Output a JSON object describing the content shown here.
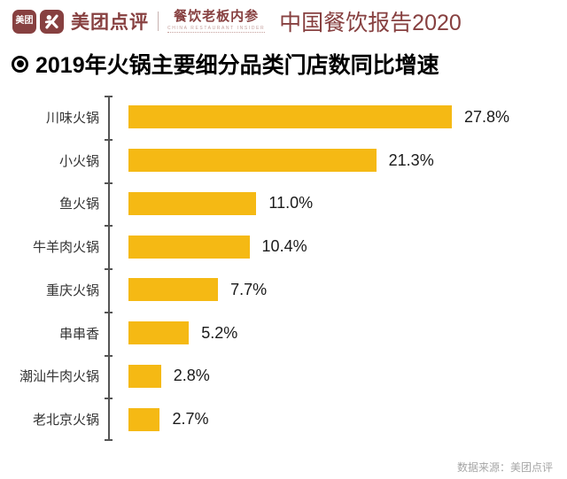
{
  "header": {
    "meituan_badge_label": "美团",
    "brand_name": "美团点评",
    "partner_name": "餐饮老板内参",
    "partner_caption": "CHINA RESTAURANT INSIDER",
    "report_title": "中国餐饮报告2020"
  },
  "title": "2019年火锅主要细分品类门店数同比增速",
  "source_note": "数据来源：美团点评",
  "colors": {
    "brand_maroon": "#874040",
    "bar_yellow": "#F5B914",
    "axis_gray": "#555555",
    "value_text": "#1a1a1a",
    "category_text": "#333333",
    "source_text": "#a6a6a6"
  },
  "chart_data": {
    "type": "bar",
    "orientation": "horizontal",
    "title": "2019年火锅主要细分品类门店数同比增速",
    "categories": [
      "川味火锅",
      "小火锅",
      "鱼火锅",
      "牛羊肉火锅",
      "重庆火锅",
      "串串香",
      "潮汕牛肉火锅",
      "老北京火锅"
    ],
    "values": [
      27.8,
      21.3,
      11.0,
      10.4,
      7.7,
      5.2,
      2.8,
      2.7
    ],
    "value_labels": [
      "27.8%",
      "21.3%",
      "11.0%",
      "10.4%",
      "7.7%",
      "5.2%",
      "2.8%",
      "2.7%"
    ],
    "unit": "%",
    "xlim": [
      0,
      30
    ],
    "grid": false,
    "legend": false,
    "data_labels": "outside-end"
  }
}
